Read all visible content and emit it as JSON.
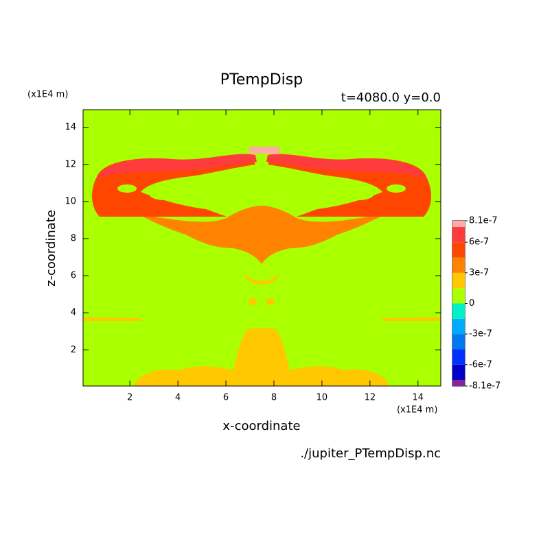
{
  "chart_data": {
    "type": "contour",
    "title": "PTempDisp",
    "subtitle": "t=4080.0 y=0.0",
    "xlabel": "x-coordinate",
    "ylabel": "z-coordinate",
    "x_units": "(x1E4 m)",
    "y_units": "(x1E4 m)",
    "footer": "./jupiter_PTempDisp.nc",
    "xlim": [
      0.05,
      14.95
    ],
    "ylim": [
      0.05,
      14.95
    ],
    "xticks": [
      2,
      4,
      6,
      8,
      10,
      12,
      14
    ],
    "yticks": [
      2,
      4,
      6,
      8,
      10,
      12,
      14
    ],
    "levels": [
      -8.1e-07,
      -7.5e-07,
      -6e-07,
      -4.5e-07,
      -3e-07,
      -1.5e-07,
      0,
      1.5e-07,
      3e-07,
      4.5e-07,
      6e-07,
      7.5e-07,
      8.1e-07
    ],
    "colors": [
      "#8c1ea0",
      "#0000c8",
      "#0032ff",
      "#0078f0",
      "#00aaff",
      "#00f0c8",
      "#aaff00",
      "#ffc800",
      "#ff8200",
      "#ff4600",
      "#ff3c3c",
      "#ffaaaa"
    ],
    "colorbar_ticks": [
      8.1e-07,
      6e-07,
      3e-07,
      0,
      -3e-07,
      -6e-07,
      -8.1e-07
    ]
  }
}
